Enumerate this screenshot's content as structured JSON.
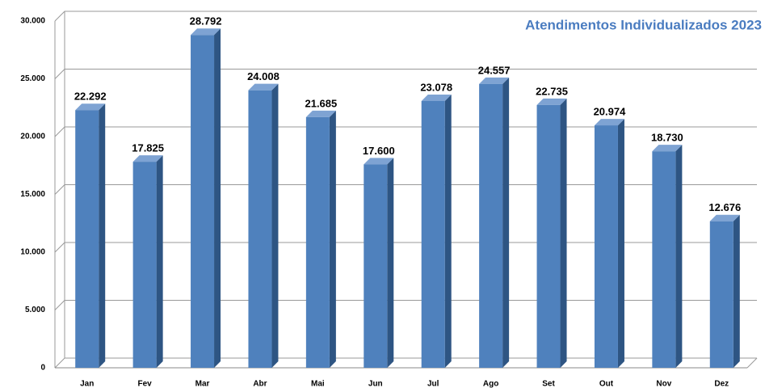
{
  "chart_data": {
    "type": "bar",
    "title": "Atendimentos Individualizados 2023",
    "categories": [
      "Jan",
      "Fev",
      "Mar",
      "Abr",
      "Mai",
      "Jun",
      "Jul",
      "Ago",
      "Set",
      "Out",
      "Nov",
      "Dez"
    ],
    "values": [
      22292,
      17825,
      28792,
      24008,
      21685,
      17600,
      23078,
      24557,
      22735,
      20974,
      18730,
      12676
    ],
    "value_labels": [
      "22.292",
      "17.825",
      "28.792",
      "24.008",
      "21.685",
      "17.600",
      "23.078",
      "24.557",
      "22.735",
      "20.974",
      "18.730",
      "12.676"
    ],
    "color": "#4f81bd",
    "ylim": [
      0,
      30000
    ],
    "yticks": [
      0,
      {
        "value": 5000,
        "label": "5.000"
      },
      {
        "value": 10000,
        "label": "10.000"
      },
      {
        "value": 15000,
        "label": "15.000"
      },
      {
        "value": 20000,
        "label": "20.000"
      },
      {
        "value": 25000,
        "label": "25.000"
      },
      {
        "value": 30000,
        "label": "30.000"
      }
    ],
    "grid": true
  }
}
